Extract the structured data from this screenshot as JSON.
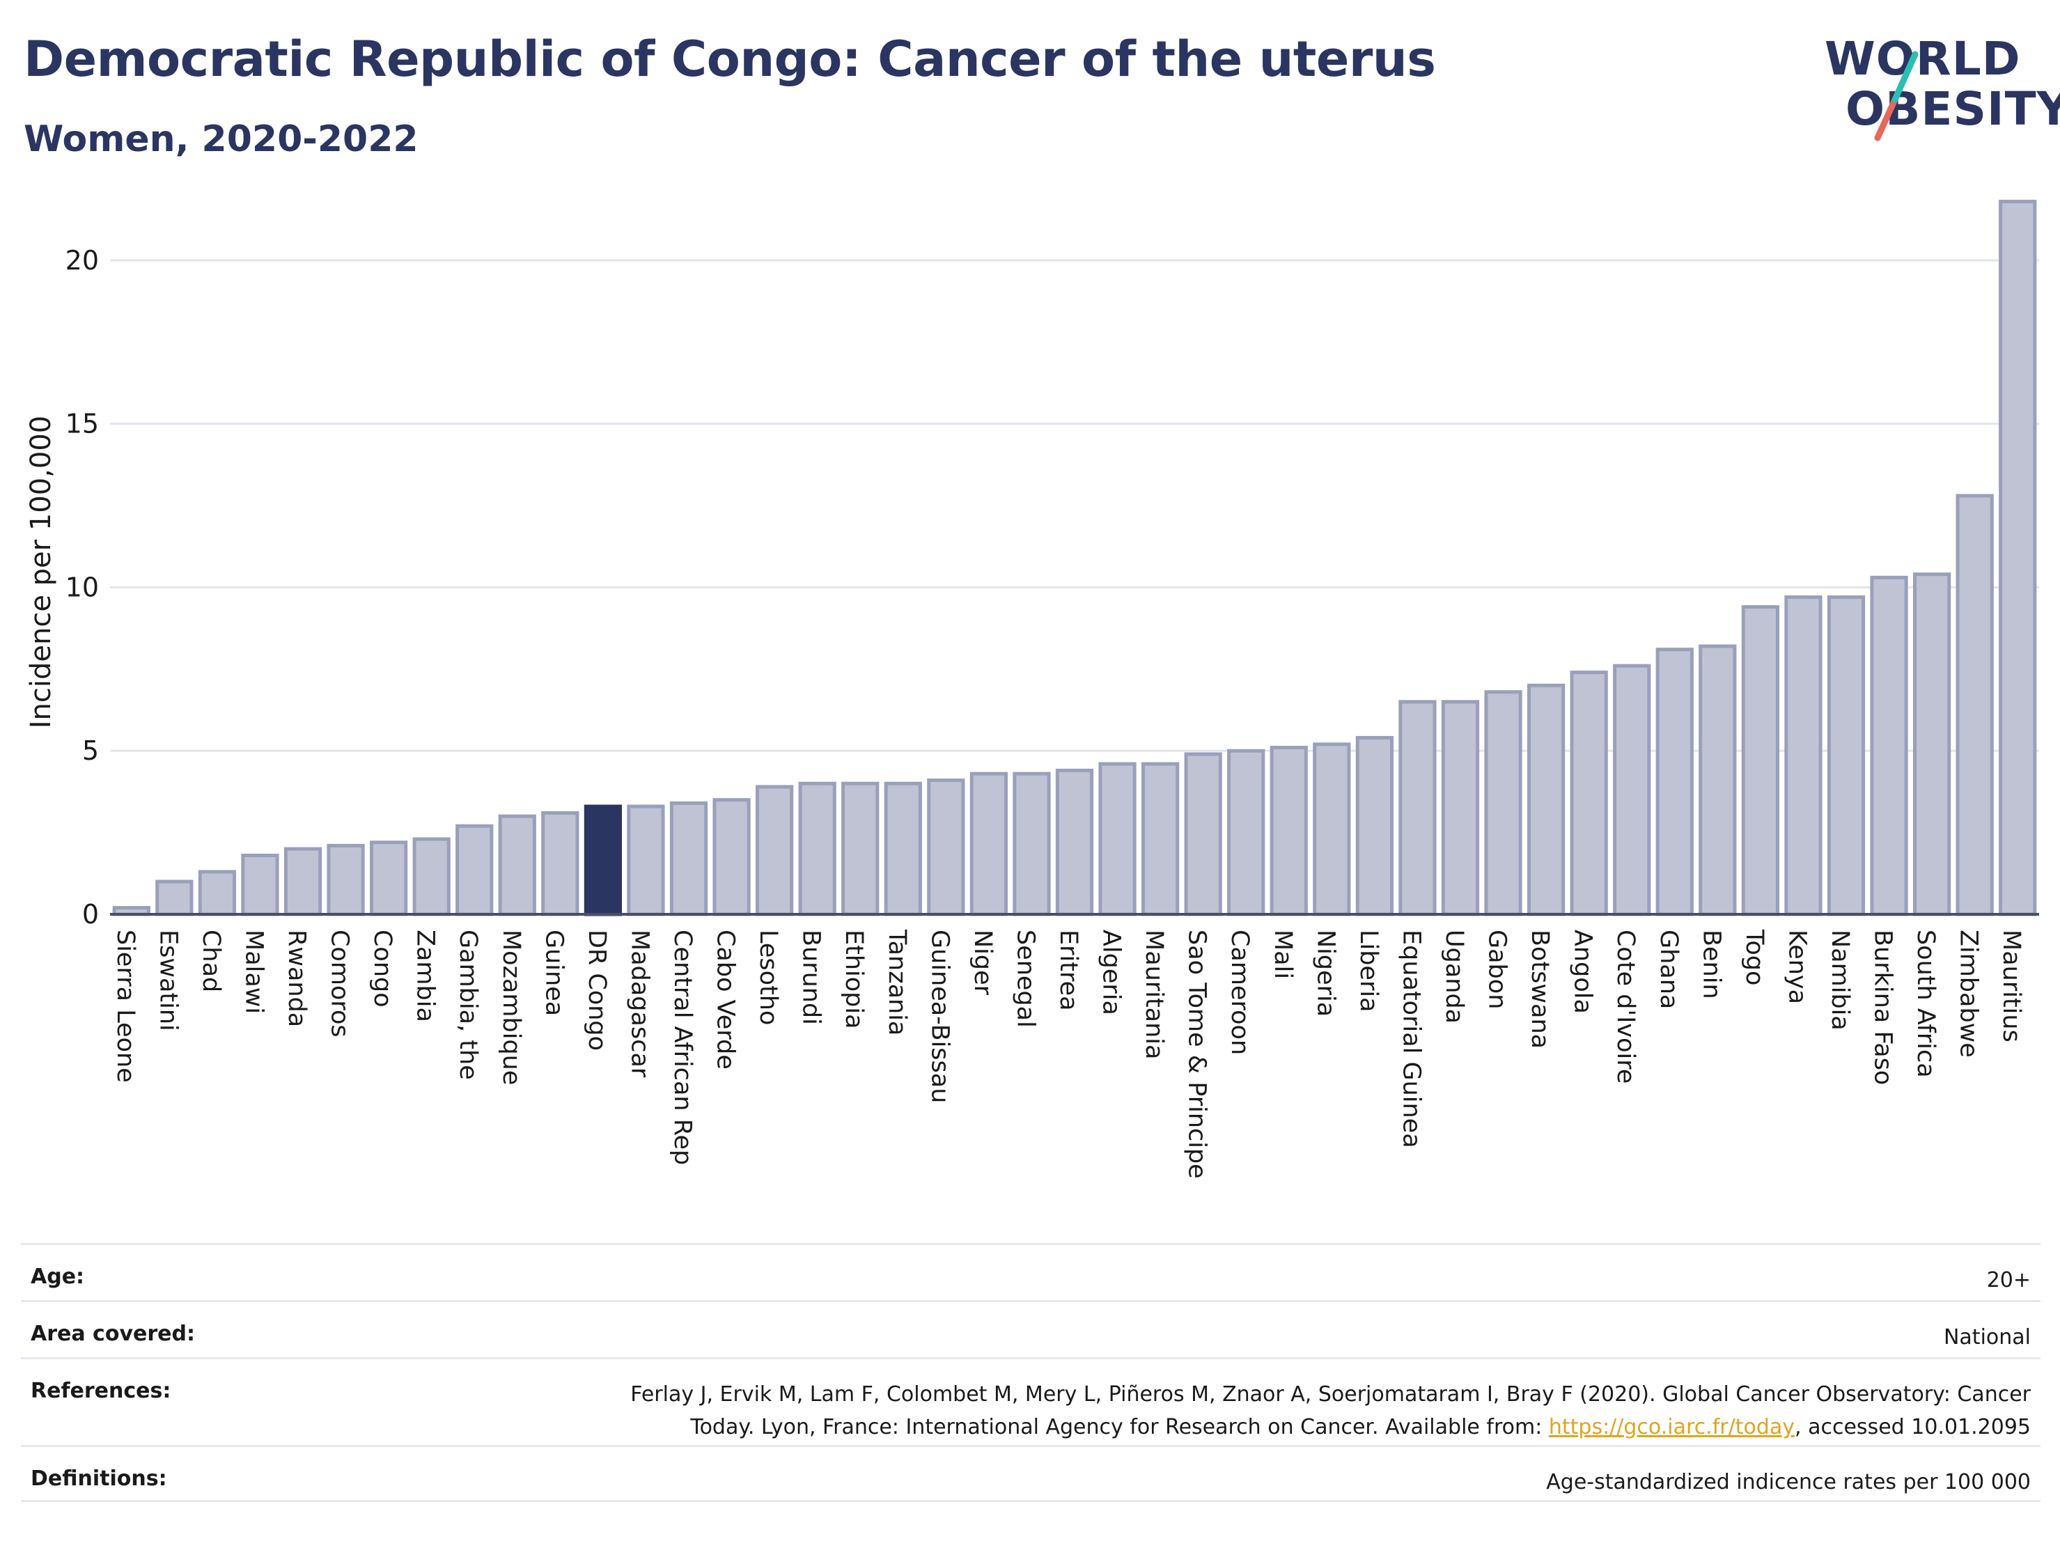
{
  "header": {
    "title": "Democratic Republic of Congo: Cancer of the uterus",
    "subtitle": "Women, 2020-2022"
  },
  "logo": {
    "line1": "WORLD",
    "line2": "OBESITY",
    "colors": {
      "text": "#2b3561",
      "slash_top": "#2bbfb3",
      "slash_bottom": "#e8675a"
    }
  },
  "chart_data": {
    "type": "bar",
    "ylabel": "Incidence per 100,000",
    "xlabel": "",
    "ylim": [
      0,
      22
    ],
    "yticks": [
      0,
      5,
      10,
      15,
      20
    ],
    "grid": true,
    "highlight": "DR Congo",
    "colors": {
      "bar": "#bfc3d3",
      "bar_edge": "#9aa0bb",
      "highlight": "#2b3561"
    },
    "categories": [
      "Sierra Leone",
      "Eswatini",
      "Chad",
      "Malawi",
      "Rwanda",
      "Comoros",
      "Congo",
      "Zambia",
      "Gambia, the",
      "Mozambique",
      "Guinea",
      "DR Congo",
      "Madagascar",
      "Central African Rep",
      "Cabo Verde",
      "Lesotho",
      "Burundi",
      "Ethiopia",
      "Tanzania",
      "Guinea-Bissau",
      "Niger",
      "Senegal",
      "Eritrea",
      "Algeria",
      "Mauritania",
      "Sao Tome & Principe",
      "Cameroon",
      "Mali",
      "Nigeria",
      "Liberia",
      "Equatorial Guinea",
      "Uganda",
      "Gabon",
      "Botswana",
      "Angola",
      "Cote d'Ivoire",
      "Ghana",
      "Benin",
      "Togo",
      "Kenya",
      "Namibia",
      "Burkina Faso",
      "South Africa",
      "Zimbabwe",
      "Mauritius"
    ],
    "values": [
      0.2,
      1.0,
      1.3,
      1.8,
      2.0,
      2.1,
      2.2,
      2.3,
      2.7,
      3.0,
      3.1,
      3.3,
      3.3,
      3.4,
      3.5,
      3.9,
      4.0,
      4.0,
      4.0,
      4.1,
      4.3,
      4.3,
      4.4,
      4.6,
      4.6,
      4.9,
      5.0,
      5.1,
      5.2,
      5.4,
      6.5,
      6.5,
      6.8,
      7.0,
      7.4,
      7.6,
      8.1,
      8.2,
      9.4,
      9.7,
      9.7,
      10.3,
      10.4,
      12.8,
      21.8
    ]
  },
  "meta": {
    "age_label": "Age:",
    "age_value": "20+",
    "area_label": "Area covered:",
    "area_value": "National",
    "references_label": "References:",
    "references_line1": "Ferlay J, Ervik M, Lam F, Colombet M, Mery L, Piñeros M, Znaor A, Soerjomataram I, Bray F (2020). Global Cancer Observatory: Cancer",
    "references_line2_pre": "Today. Lyon, France: International Agency for Research on Cancer. Available from: ",
    "references_link": "https://gco.iarc.fr/today",
    "references_line2_post": ", accessed 10.01.2095",
    "definitions_label": "Definitions:",
    "definitions_value": "Age-standardized indicence rates per 100 000"
  }
}
